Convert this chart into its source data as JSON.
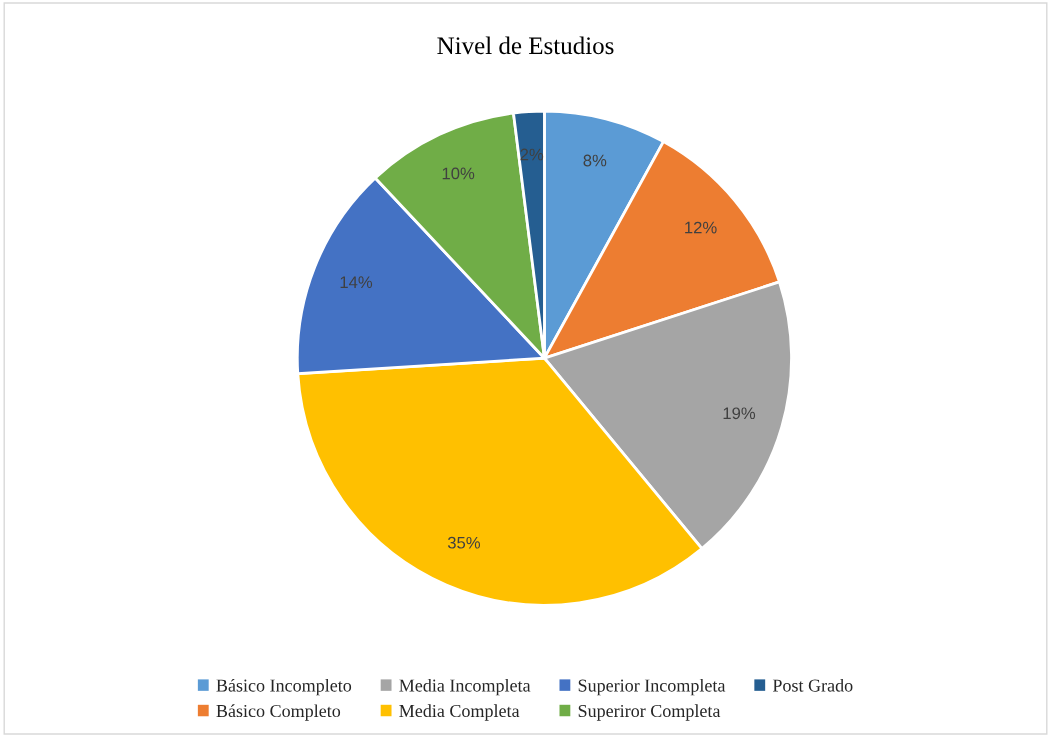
{
  "chart_data": {
    "type": "pie",
    "title": "Nivel de Estudios",
    "categories": [
      "Básico Incompleto",
      "Básico Completo",
      "Media Incompleta",
      "Media Completa",
      "Superior Incompleta",
      "Superiror Completa",
      "Post Grado"
    ],
    "values": [
      8,
      12,
      19,
      35,
      14,
      10,
      2
    ],
    "colors": [
      "#5b9bd5",
      "#ed7d31",
      "#a5a5a5",
      "#ffc000",
      "#4472c4",
      "#70ad47",
      "#255e91"
    ],
    "value_labels": [
      "8%",
      "12%",
      "19%",
      "35%",
      "14%",
      "10%",
      "2%"
    ],
    "legend": "bottom"
  }
}
